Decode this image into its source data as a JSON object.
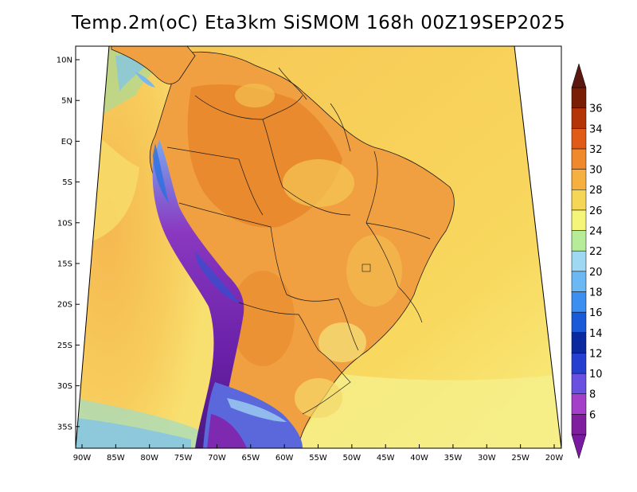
{
  "title": "Temp.2m(oC) Eta3km SiSMOM 168h 00Z19SEP2025",
  "lat_labels": [
    "10N",
    "5N",
    "EQ",
    "5S",
    "10S",
    "15S",
    "20S",
    "25S",
    "30S",
    "35S"
  ],
  "lon_labels": [
    "90W",
    "85W",
    "80W",
    "75W",
    "70W",
    "65W",
    "60W",
    "55W",
    "50W",
    "45W",
    "40W",
    "35W",
    "30W",
    "25W",
    "20W"
  ],
  "colorbar": {
    "labels": [
      "6",
      "8",
      "10",
      "12",
      "14",
      "16",
      "18",
      "20",
      "22",
      "24",
      "26",
      "28",
      "30",
      "32",
      "34",
      "36"
    ],
    "colors": [
      "#7f1fa0",
      "#a33fc8",
      "#6a50e0",
      "#2540d0",
      "#0a2aa0",
      "#1a5ad8",
      "#3c8ef0",
      "#6cb8f5",
      "#9ed8f2",
      "#b6ec98",
      "#f5f57a",
      "#f5d657",
      "#f5b040",
      "#f0882c",
      "#e05a18",
      "#b43408",
      "#7a1e06"
    ],
    "extend_low_color": "#7a1aa0",
    "extend_high_color": "#5a1810"
  },
  "colors": {
    "ocean_warm": "#f7c456",
    "ocean_cool": "#f8e46a",
    "ocean_edge": "#9fd6f0",
    "land_hot": "#f09a3a",
    "land_mid": "#f2b14a",
    "andes": "#8a2db0",
    "andes_deep": "#4a1a7a",
    "patagonia": "#5a6ad8"
  }
}
